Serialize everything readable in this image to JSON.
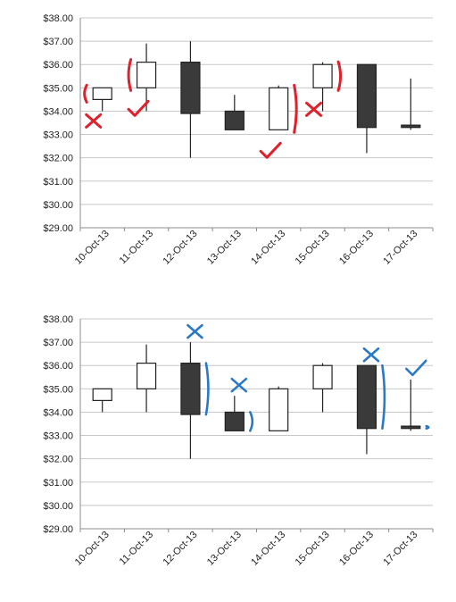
{
  "chart_data": [
    {
      "type": "candlestick",
      "title": "",
      "xlabel": "",
      "ylabel": "",
      "ylim": [
        29,
        38
      ],
      "yticks": [
        "$29.00",
        "$30.00",
        "$31.00",
        "$32.00",
        "$33.00",
        "$34.00",
        "$35.00",
        "$36.00",
        "$37.00",
        "$38.00"
      ],
      "grid": true,
      "categories": [
        "10-Oct-13",
        "11-Oct-13",
        "12-Oct-13",
        "13-Oct-13",
        "14-Oct-13",
        "15-Oct-13",
        "16-Oct-13",
        "17-Oct-13"
      ],
      "candles": [
        {
          "open": 34.5,
          "high": 35.0,
          "low": 34.0,
          "close": 35.0
        },
        {
          "open": 35.0,
          "high": 36.9,
          "low": 34.0,
          "close": 36.1
        },
        {
          "open": 36.1,
          "high": 37.0,
          "low": 32.0,
          "close": 33.9
        },
        {
          "open": 34.0,
          "high": 34.7,
          "low": 33.2,
          "close": 33.2
        },
        {
          "open": 33.2,
          "high": 35.1,
          "low": 33.2,
          "close": 35.0
        },
        {
          "open": 35.0,
          "high": 36.1,
          "low": 34.0,
          "close": 36.0
        },
        {
          "open": 36.0,
          "high": 36.0,
          "low": 32.2,
          "close": 33.3
        },
        {
          "open": 33.4,
          "high": 35.4,
          "low": 33.2,
          "close": 33.3
        }
      ],
      "annotations": {
        "color": "#e0202a",
        "marks": [
          {
            "category": "10-Oct-13",
            "symbol": "cross"
          },
          {
            "category": "11-Oct-13",
            "symbol": "check"
          },
          {
            "category": "14-Oct-13",
            "symbol": "check"
          },
          {
            "category": "15-Oct-13",
            "symbol": "cross"
          }
        ]
      }
    },
    {
      "type": "candlestick",
      "title": "",
      "xlabel": "",
      "ylabel": "",
      "ylim": [
        29,
        38
      ],
      "yticks": [
        "$29.00",
        "$30.00",
        "$31.00",
        "$32.00",
        "$33.00",
        "$34.00",
        "$35.00",
        "$36.00",
        "$37.00",
        "$38.00"
      ],
      "grid": true,
      "categories": [
        "10-Oct-13",
        "11-Oct-13",
        "12-Oct-13",
        "13-Oct-13",
        "14-Oct-13",
        "15-Oct-13",
        "16-Oct-13",
        "17-Oct-13"
      ],
      "candles": [
        {
          "open": 34.5,
          "high": 35.0,
          "low": 34.0,
          "close": 35.0
        },
        {
          "open": 35.0,
          "high": 36.9,
          "low": 34.0,
          "close": 36.1
        },
        {
          "open": 36.1,
          "high": 37.0,
          "low": 32.0,
          "close": 33.9
        },
        {
          "open": 34.0,
          "high": 34.7,
          "low": 33.2,
          "close": 33.2
        },
        {
          "open": 33.2,
          "high": 35.1,
          "low": 33.2,
          "close": 35.0
        },
        {
          "open": 35.0,
          "high": 36.1,
          "low": 34.0,
          "close": 36.0
        },
        {
          "open": 36.0,
          "high": 36.0,
          "low": 32.2,
          "close": 33.3
        },
        {
          "open": 33.4,
          "high": 35.4,
          "low": 33.2,
          "close": 33.3
        }
      ],
      "annotations": {
        "color": "#2a78c8",
        "marks": [
          {
            "category": "12-Oct-13",
            "symbol": "cross"
          },
          {
            "category": "13-Oct-13",
            "symbol": "cross"
          },
          {
            "category": "16-Oct-13",
            "symbol": "cross"
          },
          {
            "category": "17-Oct-13",
            "symbol": "check"
          }
        ]
      }
    }
  ]
}
